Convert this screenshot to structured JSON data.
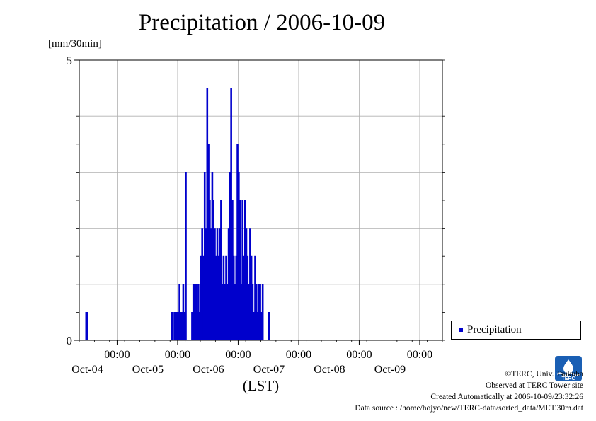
{
  "title": "Precipitation / 2006-10-09",
  "unit_label": "[mm/30min]",
  "xlabel": "(LST)",
  "legend_label": "Precipitation",
  "credits": {
    "copyright": "©TERC, Univ. Tsukuba",
    "observed": "Observed at TERC Tower site",
    "created": "Created Automatically at 2006-10-09/23:32:26",
    "source": "Data source : /home/hojyo/new/TERC-data/sorted_data/MET.30m.dat"
  },
  "logo_text": "TERC",
  "chart_data": {
    "type": "bar",
    "title": "Precipitation / 2006-10-09",
    "ylabel": "[mm/30min]",
    "xlabel": "(LST)",
    "ylim": [
      0,
      5
    ],
    "y_ticks": [
      {
        "value": 0,
        "label": "0"
      },
      {
        "value": 5,
        "label": "5"
      }
    ],
    "y_gridlines": [
      1,
      2,
      3,
      4
    ],
    "x_start": "2006-10-03 09:00",
    "x_end": "2006-10-09 09:00",
    "x_ticks": [
      {
        "time": "2006-10-04 00:00",
        "time_label": "00:00",
        "date_label": "Oct-04"
      },
      {
        "time": "2006-10-05 00:00",
        "time_label": "00:00",
        "date_label": "Oct-05"
      },
      {
        "time": "2006-10-06 00:00",
        "time_label": "00:00",
        "date_label": "Oct-06"
      },
      {
        "time": "2006-10-07 00:00",
        "time_label": "00:00",
        "date_label": "Oct-07"
      },
      {
        "time": "2006-10-08 00:00",
        "time_label": "00:00",
        "date_label": "Oct-08"
      },
      {
        "time": "2006-10-09 00:00",
        "time_label": "00:00",
        "date_label": "Oct-09"
      }
    ],
    "grid": true,
    "legend_position": "bottom-right",
    "color": "#0000cc",
    "series": [
      {
        "name": "Precipitation",
        "points": [
          [
            "2006-10-03 11:30",
            0.5
          ],
          [
            "2006-10-03 12:00",
            0.5
          ],
          [
            "2006-10-04 21:30",
            0.5
          ],
          [
            "2006-10-04 22:30",
            0.5
          ],
          [
            "2006-10-04 23:00",
            0.5
          ],
          [
            "2006-10-04 23:30",
            0.5
          ],
          [
            "2006-10-05 00:00",
            0.5
          ],
          [
            "2006-10-05 00:30",
            1.0
          ],
          [
            "2006-10-05 01:00",
            0.5
          ],
          [
            "2006-10-05 01:30",
            0.5
          ],
          [
            "2006-10-05 02:00",
            1.0
          ],
          [
            "2006-10-05 02:30",
            0.5
          ],
          [
            "2006-10-05 03:00",
            3.0
          ],
          [
            "2006-10-05 05:30",
            0.5
          ],
          [
            "2006-10-05 06:00",
            1.0
          ],
          [
            "2006-10-05 06:30",
            1.0
          ],
          [
            "2006-10-05 07:00",
            1.0
          ],
          [
            "2006-10-05 07:30",
            0.5
          ],
          [
            "2006-10-05 08:00",
            1.0
          ],
          [
            "2006-10-05 08:30",
            0.5
          ],
          [
            "2006-10-05 09:00",
            1.5
          ],
          [
            "2006-10-05 09:30",
            2.0
          ],
          [
            "2006-10-05 10:00",
            1.5
          ],
          [
            "2006-10-05 10:30",
            3.0
          ],
          [
            "2006-10-05 11:00",
            2.0
          ],
          [
            "2006-10-05 11:30",
            4.5
          ],
          [
            "2006-10-05 12:00",
            3.5
          ],
          [
            "2006-10-05 12:30",
            2.5
          ],
          [
            "2006-10-05 13:00",
            2.0
          ],
          [
            "2006-10-05 13:30",
            3.0
          ],
          [
            "2006-10-05 14:00",
            2.5
          ],
          [
            "2006-10-05 14:30",
            2.0
          ],
          [
            "2006-10-05 15:00",
            1.5
          ],
          [
            "2006-10-05 15:30",
            2.0
          ],
          [
            "2006-10-05 16:00",
            1.5
          ],
          [
            "2006-10-05 16:30",
            2.0
          ],
          [
            "2006-10-05 17:00",
            2.5
          ],
          [
            "2006-10-05 17:30",
            1.0
          ],
          [
            "2006-10-05 18:00",
            1.5
          ],
          [
            "2006-10-05 18:30",
            1.0
          ],
          [
            "2006-10-05 19:00",
            1.5
          ],
          [
            "2006-10-05 19:30",
            1.0
          ],
          [
            "2006-10-05 20:00",
            2.0
          ],
          [
            "2006-10-05 20:30",
            3.0
          ],
          [
            "2006-10-05 21:00",
            4.5
          ],
          [
            "2006-10-05 21:30",
            2.5
          ],
          [
            "2006-10-05 22:00",
            1.5
          ],
          [
            "2006-10-05 22:30",
            1.0
          ],
          [
            "2006-10-05 23:00",
            1.5
          ],
          [
            "2006-10-05 23:30",
            3.5
          ],
          [
            "2006-10-06 00:00",
            3.0
          ],
          [
            "2006-10-06 00:30",
            2.5
          ],
          [
            "2006-10-06 01:00",
            1.0
          ],
          [
            "2006-10-06 01:30",
            2.5
          ],
          [
            "2006-10-06 02:00",
            1.5
          ],
          [
            "2006-10-06 02:30",
            2.5
          ],
          [
            "2006-10-06 03:00",
            2.0
          ],
          [
            "2006-10-06 03:30",
            1.5
          ],
          [
            "2006-10-06 04:00",
            1.0
          ],
          [
            "2006-10-06 04:30",
            2.0
          ],
          [
            "2006-10-06 05:00",
            1.5
          ],
          [
            "2006-10-06 05:30",
            1.0
          ],
          [
            "2006-10-06 06:00",
            0.5
          ],
          [
            "2006-10-06 06:30",
            1.5
          ],
          [
            "2006-10-06 07:00",
            1.0
          ],
          [
            "2006-10-06 07:30",
            0.5
          ],
          [
            "2006-10-06 08:00",
            1.0
          ],
          [
            "2006-10-06 08:30",
            1.0
          ],
          [
            "2006-10-06 09:00",
            0.5
          ],
          [
            "2006-10-06 09:30",
            1.0
          ],
          [
            "2006-10-06 12:00",
            0.5
          ]
        ]
      }
    ]
  }
}
